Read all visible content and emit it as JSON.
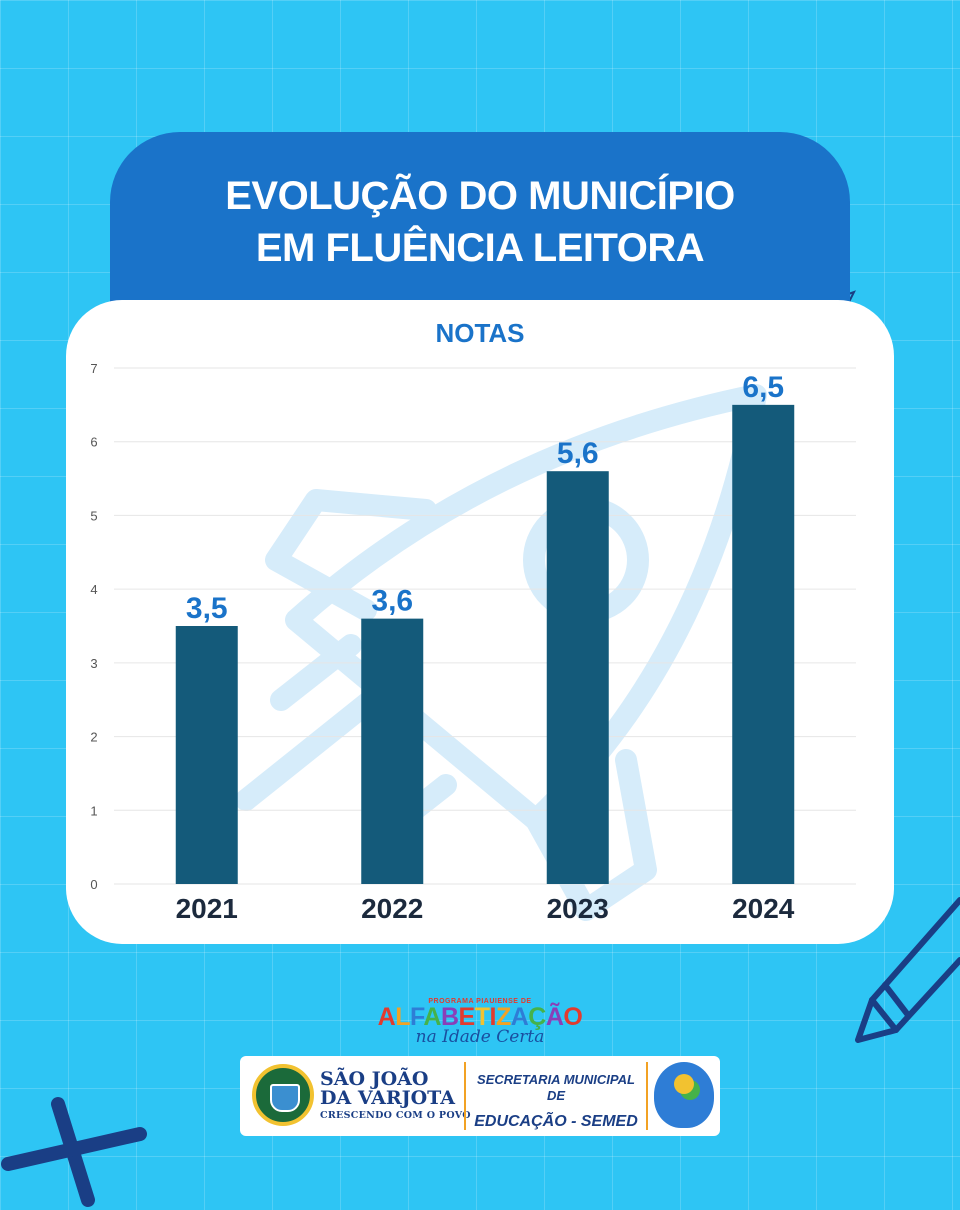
{
  "header": {
    "title_line1": "EVOLUÇÃO DO MUNICÍPIO",
    "title_line2": "EM FLUÊNCIA LEITORA"
  },
  "chart_data": {
    "type": "bar",
    "title": "NOTAS",
    "categories": [
      "2021",
      "2022",
      "2023",
      "2024"
    ],
    "values": [
      3.5,
      3.6,
      5.6,
      6.5
    ],
    "value_labels": [
      "3,5",
      "3,6",
      "5,6",
      "6,5"
    ],
    "yticks": [
      0,
      1,
      2,
      3,
      4,
      5,
      6,
      7
    ],
    "ylim": [
      0,
      7
    ],
    "xlabel": "",
    "ylabel": "",
    "grid": true,
    "legend": "none",
    "colors": {
      "bar": "#145a7a",
      "value_label": "#1a73c9",
      "category_label": "#1c2a3d",
      "tick": "#555555",
      "grid": "#e6e6e6",
      "watermark": "#d6ecfa"
    }
  },
  "footer": {
    "program_small": "PROGRAMA PIAUIENSE DE",
    "program_name": "ALFABETIZAÇÃO",
    "program_script": "na Idade Certa",
    "city_line1": "SÃO JOÃO",
    "city_line2": "DA VARJOTA",
    "city_slogan": "CRESCENDO COM O POVO",
    "secretaria_line1": "SECRETARIA MUNICIPAL DE",
    "secretaria_line2": "EDUCAÇÃO - SEMED"
  },
  "icons": [
    "rocket-watermark-icon",
    "pencil-icon",
    "paper-plane-icon",
    "cross-icon"
  ]
}
